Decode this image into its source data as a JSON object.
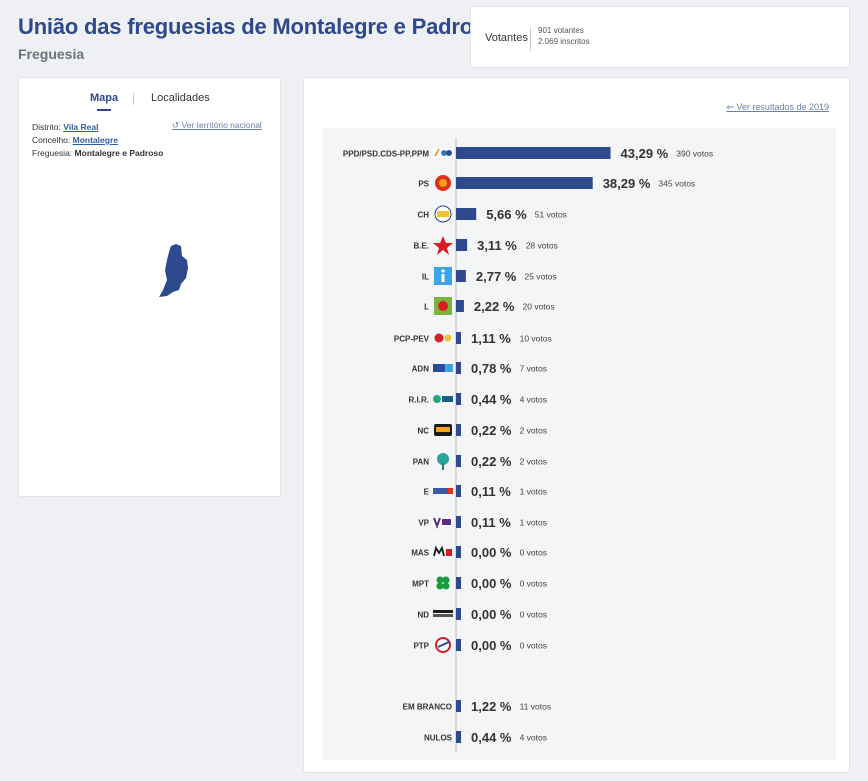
{
  "header": {
    "title": "União das freguesias de Montalegre e Padroso",
    "subtitle": "Freguesia",
    "votantes_label": "Votantes",
    "votantes_count": "901 votantes",
    "inscritos_count": "2.069 inscritos"
  },
  "left": {
    "tab_map": "Mapa",
    "tab_localidades": "Localidades",
    "nat_link": "Ver território nacional",
    "distrito_label": "Distrito:",
    "distrito_value": "Vila Real",
    "concelho_label": "Concelho:",
    "concelho_value": "Montalegre",
    "freguesia_label": "Freguesia:",
    "freguesia_value": "Montalegre e Padroso"
  },
  "right": {
    "prev_link": "Ver resultados de 2019"
  },
  "colors": {
    "bar": "#2e4a8c",
    "title": "#2e4a8c"
  },
  "chart_data": {
    "type": "bar",
    "orientation": "horizontal",
    "categories": [
      "PPD/PSD.CDS-PP.PPM",
      "PS",
      "CH",
      "B.E.",
      "IL",
      "L",
      "PCP-PEV",
      "ADN",
      "R.I.R.",
      "NC",
      "PAN",
      "E",
      "VP",
      "MAS",
      "MPT",
      "ND",
      "PTP",
      "EM BRANCO",
      "NULOS"
    ],
    "values": [
      43.29,
      38.29,
      5.66,
      3.11,
      2.77,
      2.22,
      1.11,
      0.78,
      0.44,
      0.22,
      0.22,
      0.11,
      0.11,
      0.0,
      0.0,
      0.0,
      0.0,
      1.22,
      0.44
    ],
    "value_labels": [
      "43,29 %",
      "38,29 %",
      "5,66 %",
      "3,11 %",
      "2,77 %",
      "2,22 %",
      "1,11 %",
      "0,78 %",
      "0,44 %",
      "0,22 %",
      "0,22 %",
      "0,11 %",
      "0,11 %",
      "0,00 %",
      "0,00 %",
      "0,00 %",
      "0,00 %",
      "1,22 %",
      "0,44 %"
    ],
    "votes": [
      "390 votos",
      "345 votos",
      "51 votos",
      "28 votos",
      "25 votos",
      "20 votos",
      "10 votos",
      "7 votos",
      "4 votos",
      "2 votos",
      "2 votos",
      "1 votos",
      "1 votos",
      "0 votos",
      "0 votos",
      "0 votos",
      "0 votos",
      "11 votos",
      "4 votos"
    ],
    "icons": [
      "ppd-logo-icon",
      "ps-logo-icon",
      "ch-logo-icon",
      "be-logo-icon",
      "il-logo-icon",
      "l-logo-icon",
      "pcp-logo-icon",
      "adn-logo-icon",
      "rir-logo-icon",
      "nc-logo-icon",
      "pan-logo-icon",
      "e-logo-icon",
      "volt-logo-icon",
      "mas-logo-icon",
      "mpt-logo-icon",
      "nd-logo-icon",
      "ptp-logo-icon",
      "",
      ""
    ]
  }
}
